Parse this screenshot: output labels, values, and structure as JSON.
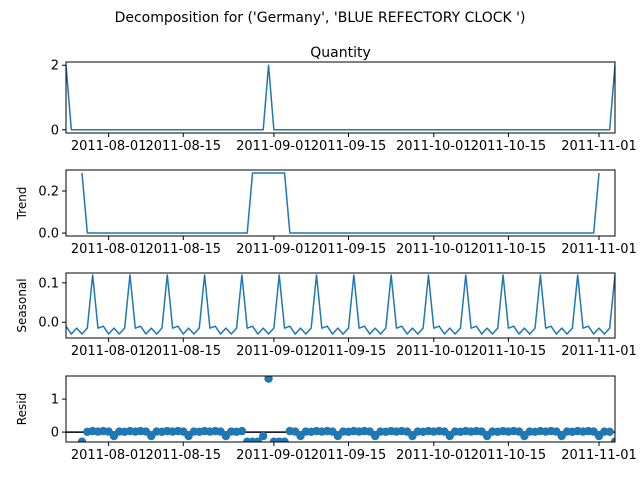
{
  "chart_data": {
    "suptitle": "Decomposition for ('Germany', 'BLUE REFECTORY CLOCK ')",
    "type": "line",
    "color": "#1f77b4",
    "x_start": "2011-07-24",
    "x_end": "2011-11-04",
    "x_ticks": [
      "2011-08-01",
      "2011-08-15",
      "2011-09-01",
      "2011-09-15",
      "2011-10-01",
      "2011-10-15",
      "2011-11-01"
    ],
    "panels": [
      {
        "name": "quantity",
        "title": "Quantity",
        "ylabel": "",
        "type": "line",
        "ylim": [
          -0.1,
          2.1
        ],
        "yticks": [
          0,
          2
        ],
        "series": [
          {
            "x": "2011-07-24",
            "y": 2
          },
          {
            "x": "2011-07-25",
            "y": 0
          },
          {
            "x": "2011-08-30",
            "y": 0
          },
          {
            "x": "2011-08-31",
            "y": 2
          },
          {
            "x": "2011-09-01",
            "y": 0
          },
          {
            "x": "2011-11-03",
            "y": 0
          },
          {
            "x": "2011-11-04",
            "y": 2
          }
        ]
      },
      {
        "name": "trend",
        "title": "",
        "ylabel": "Trend",
        "type": "line",
        "ylim": [
          -0.014,
          0.3
        ],
        "yticks": [
          0.0,
          0.2
        ],
        "series": [
          {
            "x": "2011-07-27",
            "y": 0.286
          },
          {
            "x": "2011-07-28",
            "y": 0
          },
          {
            "x": "2011-08-27",
            "y": 0
          },
          {
            "x": "2011-08-28",
            "y": 0.286
          },
          {
            "x": "2011-09-03",
            "y": 0.286
          },
          {
            "x": "2011-09-04",
            "y": 0
          },
          {
            "x": "2011-10-31",
            "y": 0
          },
          {
            "x": "2011-11-01",
            "y": 0.286
          }
        ]
      },
      {
        "name": "seasonal",
        "title": "",
        "ylabel": "Seasonal",
        "type": "line",
        "ylim": [
          -0.04,
          0.125
        ],
        "yticks": [
          0.0,
          0.1
        ],
        "weekly_pattern": [
          -0.01,
          -0.03,
          -0.015,
          -0.03,
          -0.015,
          0.12,
          -0.015
        ],
        "pattern_start": "2011-07-24"
      },
      {
        "name": "resid",
        "title": "",
        "ylabel": "Resid",
        "type": "scatter",
        "ylim": [
          -0.3,
          1.7
        ],
        "yticks": [
          0,
          1
        ],
        "zero_line": true,
        "outliers": [
          {
            "x": "2011-07-27",
            "y": -0.29
          },
          {
            "x": "2011-08-27",
            "y": -0.29
          },
          {
            "x": "2011-08-28",
            "y": -0.29
          },
          {
            "x": "2011-08-29",
            "y": -0.29
          },
          {
            "x": "2011-08-31",
            "y": 1.62
          },
          {
            "x": "2011-09-01",
            "y": -0.29
          },
          {
            "x": "2011-09-02",
            "y": -0.29
          },
          {
            "x": "2011-09-03",
            "y": -0.29
          },
          {
            "x": "2011-11-04",
            "y": -0.29
          }
        ],
        "weekly_pattern": [
          0.01,
          0.03,
          0.015,
          0.03,
          0.015,
          -0.12,
          0.015
        ],
        "pattern_start": "2011-07-28",
        "pattern_end": "2011-11-03"
      }
    ]
  }
}
